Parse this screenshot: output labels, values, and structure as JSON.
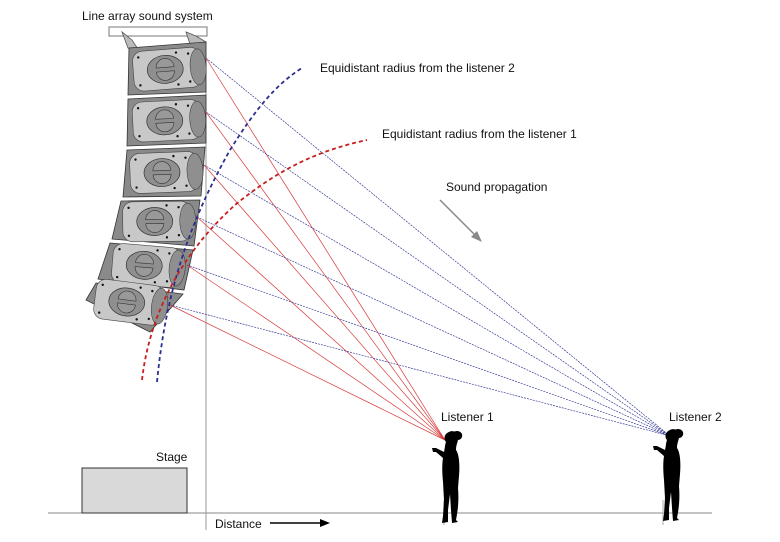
{
  "labels": {
    "system": "Line array sound system",
    "radius2": "Equidistant radius from the listener 2",
    "radius1": "Equidistant radius from the listener 1",
    "propagation": "Sound propagation",
    "listener1": "Listener 1",
    "listener2": "Listener 2",
    "stage": "Stage",
    "distance": "Distance"
  },
  "colors": {
    "listener1_rays": "#d93a3a",
    "listener2_rays": "#3a3f9a",
    "cabinet": "#8a8a8a",
    "cabinet_panel": "#c8c8c8",
    "stage_fill": "#d9d9d9"
  },
  "cabinet_count": 6
}
